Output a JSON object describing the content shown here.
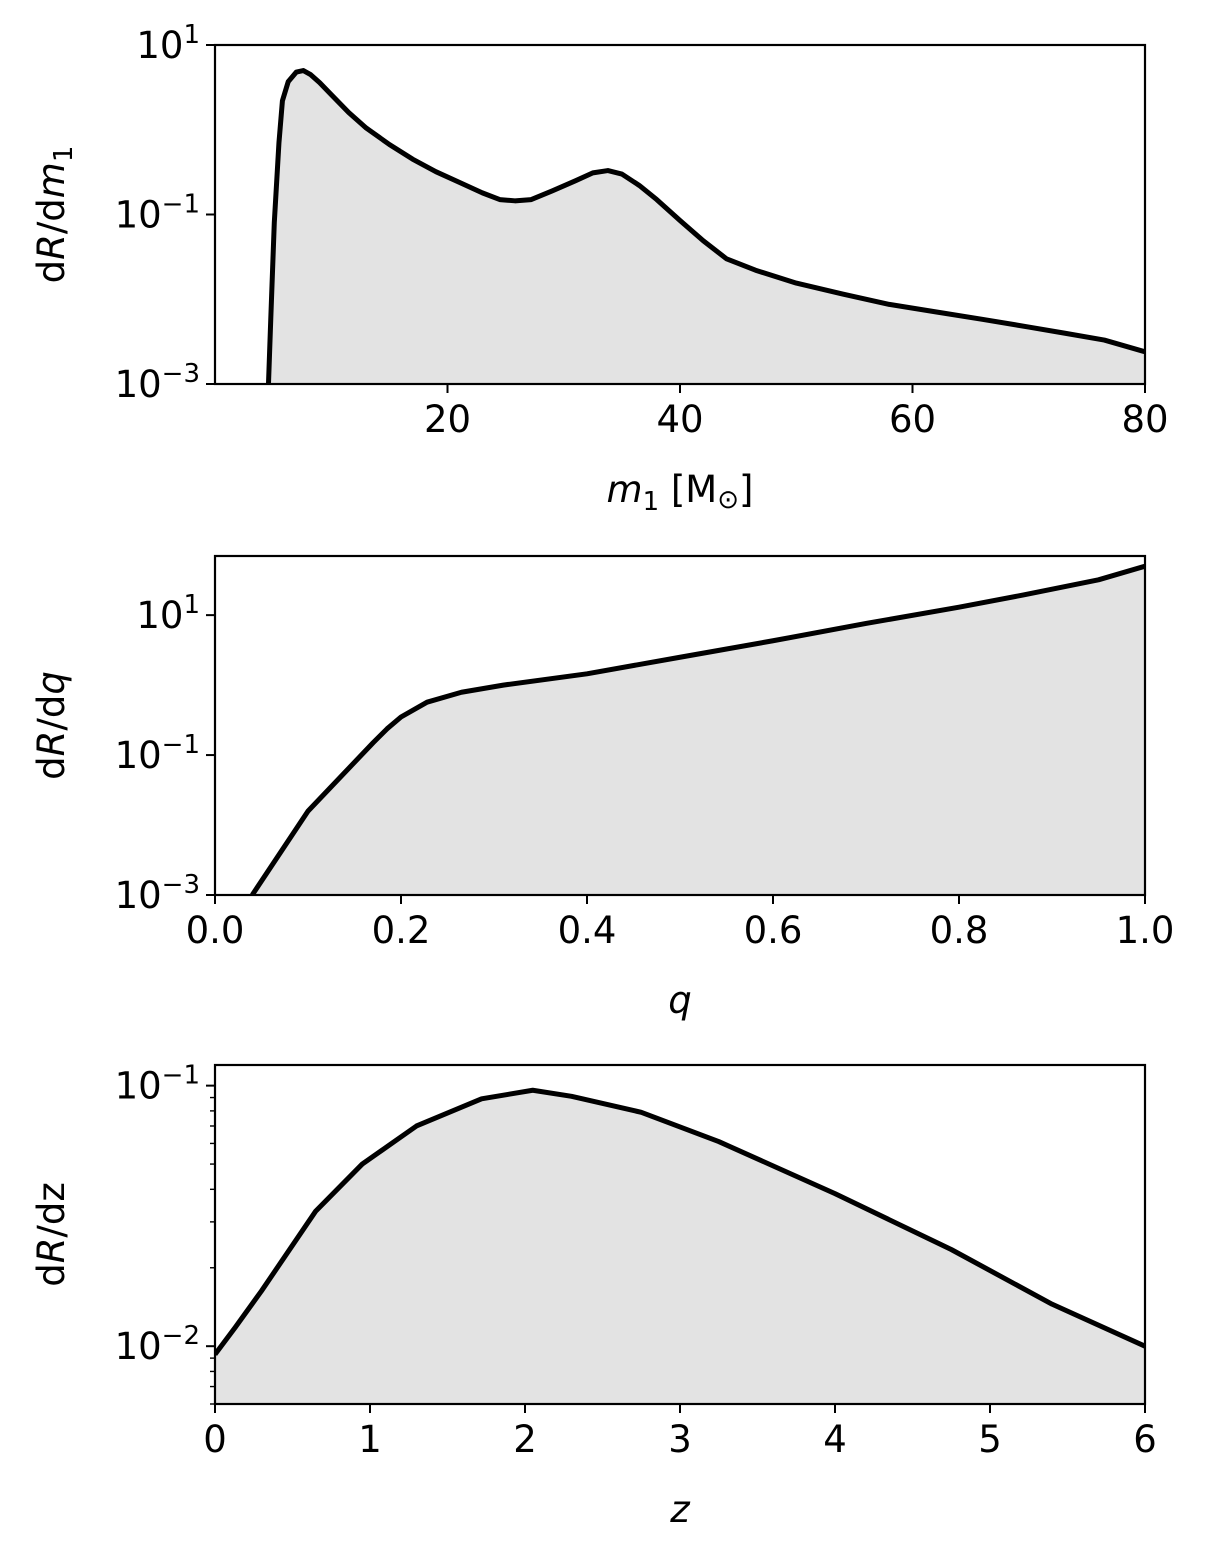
{
  "chart_data": [
    {
      "type": "area",
      "name": "mass-panel",
      "xlabel": {
        "main": "m",
        "sub": "1",
        "unit": " [M",
        "sun": "⊙",
        "unit_end": "]"
      },
      "ylabel": {
        "pre": "d",
        "r": "R",
        "mid": "/d",
        "var": "m",
        "sub": "1"
      },
      "xlim": [
        0,
        80
      ],
      "ylim": [
        0.001,
        10
      ],
      "yscale": "log",
      "xticks": [
        {
          "value": 20,
          "label": "20"
        },
        {
          "value": 40,
          "label": "40"
        },
        {
          "value": 60,
          "label": "60"
        },
        {
          "value": 80,
          "label": "80"
        }
      ],
      "yticks": [
        {
          "value": 0.001,
          "base": "10",
          "exp": "−3"
        },
        {
          "value": 0.1,
          "base": "10",
          "exp": "−1"
        },
        {
          "value": 10,
          "base": "10",
          "exp": "1"
        }
      ],
      "x": [
        4.6,
        4.8,
        5.1,
        5.5,
        5.8,
        6.3,
        7.0,
        7.6,
        8.2,
        9.0,
        10.0,
        11.5,
        13.0,
        15.0,
        17.0,
        19.0,
        21.0,
        23.0,
        24.5,
        25.8,
        27.2,
        29.0,
        31.0,
        32.5,
        33.8,
        35.0,
        36.5,
        38.0,
        40.0,
        42.0,
        44.0,
        46.5,
        50.0,
        54.0,
        58.0,
        62.0,
        66.0,
        70.0,
        73.0,
        76.5,
        80.0
      ],
      "y": [
        0.001,
        0.006,
        0.08,
        0.7,
        2.2,
        3.7,
        4.8,
        5.0,
        4.5,
        3.6,
        2.6,
        1.6,
        1.05,
        0.67,
        0.45,
        0.32,
        0.24,
        0.18,
        0.15,
        0.145,
        0.15,
        0.19,
        0.25,
        0.31,
        0.33,
        0.3,
        0.22,
        0.15,
        0.085,
        0.049,
        0.03,
        0.022,
        0.0155,
        0.0115,
        0.0087,
        0.0071,
        0.0058,
        0.0047,
        0.004,
        0.0033,
        0.0024
      ]
    },
    {
      "type": "area",
      "name": "q-panel",
      "xlabel": {
        "var": "q"
      },
      "ylabel": {
        "pre": "d",
        "r": "R",
        "mid": "/d",
        "var": "q"
      },
      "xlim": [
        0.0,
        1.0
      ],
      "ylim": [
        0.001,
        70
      ],
      "yscale": "log",
      "xticks": [
        {
          "value": 0.0,
          "label": "0.0"
        },
        {
          "value": 0.2,
          "label": "0.2"
        },
        {
          "value": 0.4,
          "label": "0.4"
        },
        {
          "value": 0.6,
          "label": "0.6"
        },
        {
          "value": 0.8,
          "label": "0.8"
        },
        {
          "value": 1.0,
          "label": "1.0"
        }
      ],
      "yticks": [
        {
          "value": 0.001,
          "base": "10",
          "exp": "−3"
        },
        {
          "value": 0.1,
          "base": "10",
          "exp": "−1"
        },
        {
          "value": 10,
          "base": "10",
          "exp": "1"
        }
      ],
      "x": [
        0.04,
        0.1,
        0.17,
        0.185,
        0.2,
        0.228,
        0.265,
        0.31,
        0.4,
        0.5,
        0.6,
        0.7,
        0.8,
        0.87,
        0.95,
        1.0
      ],
      "y": [
        0.001,
        0.0158,
        0.15,
        0.237,
        0.35,
        0.57,
        0.79,
        1.0,
        1.45,
        2.5,
        4.3,
        7.6,
        13.0,
        19.5,
        32.0,
        50.0
      ]
    },
    {
      "type": "area",
      "name": "z-panel",
      "xlabel": {
        "var": "z"
      },
      "ylabel": {
        "pre": "d",
        "r": "R",
        "mid": "/dz"
      },
      "xlim": [
        0,
        6
      ],
      "ylim": [
        0.006,
        0.12
      ],
      "yscale": "log",
      "xticks": [
        {
          "value": 0,
          "label": "0"
        },
        {
          "value": 1,
          "label": "1"
        },
        {
          "value": 2,
          "label": "2"
        },
        {
          "value": 3,
          "label": "3"
        },
        {
          "value": 4,
          "label": "4"
        },
        {
          "value": 5,
          "label": "5"
        },
        {
          "value": 6,
          "label": "6"
        }
      ],
      "yticks": [
        {
          "value": 0.01,
          "base": "10",
          "exp": "−2"
        },
        {
          "value": 0.1,
          "base": "10",
          "exp": "−1"
        }
      ],
      "y_minor_ticks": [
        0.006,
        0.007,
        0.008,
        0.009,
        0.02,
        0.03,
        0.04,
        0.05,
        0.06,
        0.07,
        0.08,
        0.09
      ],
      "x": [
        0.0,
        0.13,
        0.3,
        0.65,
        0.95,
        1.3,
        1.72,
        2.05,
        2.3,
        2.75,
        3.25,
        4.0,
        4.75,
        5.4,
        6.0
      ],
      "y": [
        0.0093,
        0.0118,
        0.0163,
        0.033,
        0.05,
        0.07,
        0.089,
        0.096,
        0.091,
        0.079,
        0.061,
        0.0385,
        0.0235,
        0.0145,
        0.01
      ]
    }
  ]
}
